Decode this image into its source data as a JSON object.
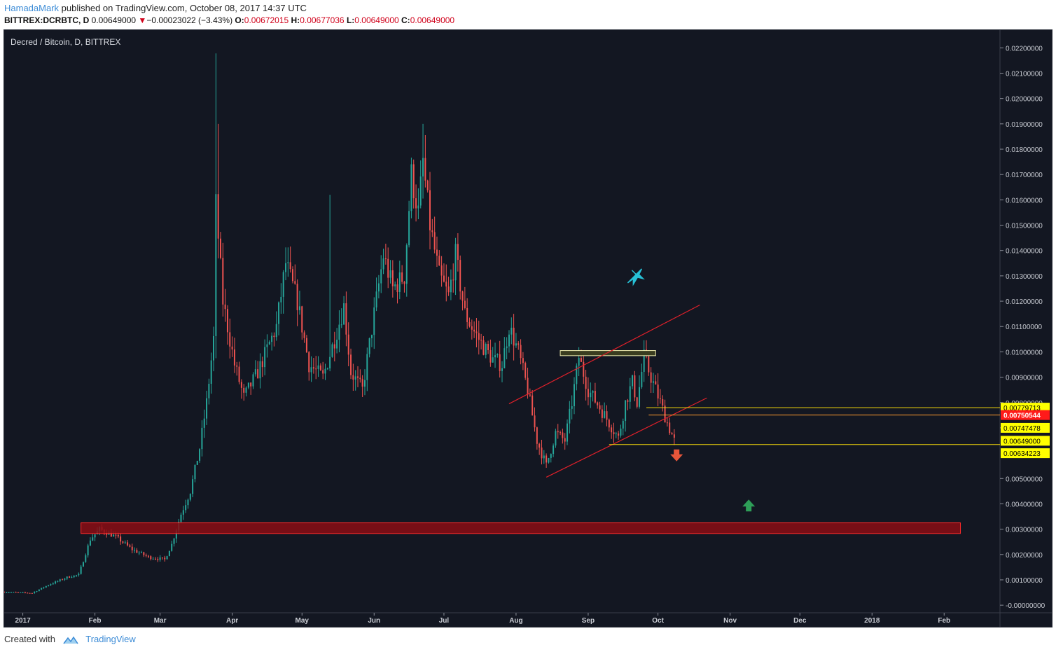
{
  "header": {
    "author": "HamadaMark",
    "published_text": "published on TradingView.com, October 08, 2017 14:37 UTC",
    "symbol": "BITTREX:DCRBTC, D",
    "last": "0.00649000",
    "change_arrow": "▼",
    "change": "−0.00023022 (−3.43%)",
    "o_label": "O:",
    "o_value": "0.00672015",
    "h_label": "H:",
    "h_value": "0.00677036",
    "l_label": "L:",
    "l_value": "0.00649000",
    "c_label": "C:",
    "c_value": "0.00649000"
  },
  "footer": {
    "created_with": "Created with",
    "brand": "TradingView"
  },
  "colors": {
    "background": "#131722",
    "up": "#26a69a",
    "down": "#ef5350",
    "trendline": "#e0202a",
    "zone_fill": "#8b0d14",
    "yellow_line": "#f5d90a",
    "label_yellow": "#ffff00",
    "label_red": "#ff1a1a",
    "axis_text": "#c9ccd3"
  },
  "chart_data": {
    "type": "candlestick",
    "title": "Decred / Bitcoin, D, BITTREX",
    "x_tick_labels": [
      "2017",
      "Feb",
      "Mar",
      "Apr",
      "May",
      "Jun",
      "Jul",
      "Aug",
      "Sep",
      "Oct",
      "Nov",
      "Dec",
      "2018",
      "Feb"
    ],
    "y_tick_labels": [
      "0.02200000",
      "0.02100000",
      "0.02000000",
      "0.01900000",
      "0.01800000",
      "0.01700000",
      "0.01600000",
      "0.01500000",
      "0.01400000",
      "0.01300000",
      "0.01200000",
      "0.01100000",
      "0.01000000",
      "0.00900000",
      "0.00800000",
      "0.00700000",
      "0.00500000",
      "0.00400000",
      "0.00300000",
      "0.00200000",
      "0.00100000",
      "-0.00000000"
    ],
    "ylim": [
      -0.0003,
      0.0227
    ],
    "x_start": "2016-12-24",
    "x_end": "2018-02-25",
    "anchor_points": [
      [
        "2016-12-24",
        0.00052
      ],
      [
        "2017-01-05",
        0.00048
      ],
      [
        "2017-01-12",
        0.0008
      ],
      [
        "2017-01-20",
        0.0011
      ],
      [
        "2017-01-25",
        0.0012
      ],
      [
        "2017-01-30",
        0.0026
      ],
      [
        "2017-02-03",
        0.003
      ],
      [
        "2017-02-10",
        0.0027
      ],
      [
        "2017-02-17",
        0.0022
      ],
      [
        "2017-02-24",
        0.0019
      ],
      [
        "2017-03-03",
        0.0018
      ],
      [
        "2017-03-06",
        0.0024
      ],
      [
        "2017-03-10",
        0.0036
      ],
      [
        "2017-03-14",
        0.0045
      ],
      [
        "2017-03-18",
        0.0062
      ],
      [
        "2017-03-21",
        0.008
      ],
      [
        "2017-03-24",
        0.0105
      ],
      [
        "2017-03-25",
        0.0158
      ],
      [
        "2017-03-28",
        0.012
      ],
      [
        "2017-04-02",
        0.0095
      ],
      [
        "2017-04-06",
        0.0082
      ],
      [
        "2017-04-12",
        0.0092
      ],
      [
        "2017-04-20",
        0.011
      ],
      [
        "2017-04-24",
        0.0135
      ],
      [
        "2017-04-29",
        0.012
      ],
      [
        "2017-05-04",
        0.0095
      ],
      [
        "2017-05-10",
        0.009
      ],
      [
        "2017-05-15",
        0.0105
      ],
      [
        "2017-05-19",
        0.0118
      ],
      [
        "2017-05-22",
        0.0092
      ],
      [
        "2017-05-27",
        0.0085
      ],
      [
        "2017-06-01",
        0.0115
      ],
      [
        "2017-06-05",
        0.0138
      ],
      [
        "2017-06-09",
        0.0125
      ],
      [
        "2017-06-14",
        0.013
      ],
      [
        "2017-06-17",
        0.017
      ],
      [
        "2017-06-20",
        0.0155
      ],
      [
        "2017-06-22",
        0.0175
      ],
      [
        "2017-06-25",
        0.015
      ],
      [
        "2017-06-29",
        0.013
      ],
      [
        "2017-07-03",
        0.0122
      ],
      [
        "2017-07-06",
        0.0138
      ],
      [
        "2017-07-10",
        0.0115
      ],
      [
        "2017-07-14",
        0.0108
      ],
      [
        "2017-07-18",
        0.0102
      ],
      [
        "2017-07-22",
        0.0097
      ],
      [
        "2017-07-26",
        0.0095
      ],
      [
        "2017-07-29",
        0.011
      ],
      [
        "2017-08-02",
        0.01
      ],
      [
        "2017-08-06",
        0.0085
      ],
      [
        "2017-08-10",
        0.0065
      ],
      [
        "2017-08-14",
        0.0055
      ],
      [
        "2017-08-18",
        0.0068
      ],
      [
        "2017-08-22",
        0.0065
      ],
      [
        "2017-08-25",
        0.008
      ],
      [
        "2017-08-28",
        0.0098
      ],
      [
        "2017-09-01",
        0.0085
      ],
      [
        "2017-09-06",
        0.0078
      ],
      [
        "2017-09-10",
        0.0072
      ],
      [
        "2017-09-14",
        0.0066
      ],
      [
        "2017-09-17",
        0.008
      ],
      [
        "2017-09-20",
        0.0088
      ],
      [
        "2017-09-22",
        0.008
      ],
      [
        "2017-09-25",
        0.0098
      ],
      [
        "2017-09-28",
        0.009
      ],
      [
        "2017-10-02",
        0.008
      ],
      [
        "2017-10-05",
        0.0072
      ],
      [
        "2017-10-08",
        0.00649
      ]
    ],
    "spikes": [
      {
        "date": "2017-03-25",
        "high": 0.02178
      },
      {
        "date": "2017-03-26",
        "high": 0.019
      },
      {
        "date": "2017-06-22",
        "high": 0.019
      },
      {
        "date": "2017-05-13",
        "high": 0.0162
      }
    ],
    "drawings": {
      "resistance_box": {
        "x1": "2017-08-20",
        "x2": "2017-09-30",
        "y1": 0.01005,
        "y2": 0.00985
      },
      "support_zone": {
        "x1": "2017-01-26",
        "x2": "2018-02-08",
        "y1": 0.00325,
        "y2": 0.00283
      },
      "channel_upper": {
        "x1": "2017-07-29",
        "y1": 0.00795,
        "x2": "2017-10-19",
        "y2": 0.01185
      },
      "channel_lower": {
        "x1": "2017-08-14",
        "y1": 0.00505,
        "x2": "2017-10-22",
        "y2": 0.00818
      },
      "hlines": [
        {
          "y": 0.00779713,
          "x1": "2017-09-26",
          "color": "yellow"
        },
        {
          "y": 0.00750544,
          "x1": "2017-09-27",
          "color": "orange"
        },
        {
          "y": 0.00634223,
          "x1": "2017-09-10",
          "color": "yellow"
        }
      ],
      "rocket_icon": {
        "x": "2017-09-21",
        "y": 0.013
      },
      "down_arrow": {
        "x": "2017-10-09",
        "y": 0.0059
      },
      "up_arrow": {
        "x": "2017-11-09",
        "y": 0.00395
      }
    },
    "price_labels": [
      {
        "text": "0.00779713",
        "y": 0.00779713,
        "style": "yellow"
      },
      {
        "text": "0.00750544",
        "y": 0.00750544,
        "style": "red"
      },
      {
        "text": "0.00747478",
        "y": 0.007,
        "style": "yellow"
      },
      {
        "text": "0.00649000",
        "y": 0.00649,
        "style": "yellow"
      },
      {
        "text": "0.00634223",
        "y": 0.006,
        "style": "yellow"
      }
    ]
  }
}
